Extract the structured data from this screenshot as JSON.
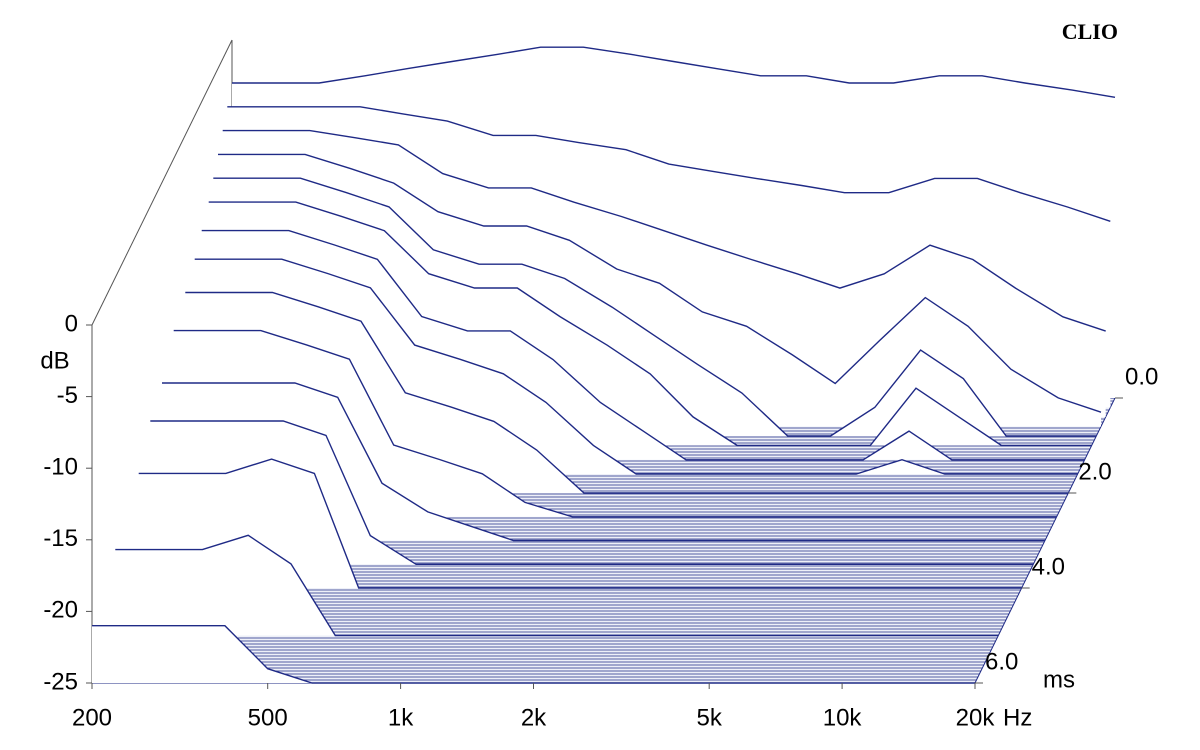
{
  "chart_data": {
    "type": "waterfall",
    "brand": "CLIO",
    "y_label": "dB",
    "x_label": "Hz",
    "t_label": "ms",
    "log_x": true,
    "color": "#1f2a86",
    "xlim": [
      200,
      20000
    ],
    "ylim": [
      -25,
      0
    ],
    "tlim": [
      0,
      6
    ],
    "xticks": [
      200,
      500,
      {
        "value": 1000,
        "label": "1k"
      },
      {
        "value": 2000,
        "label": "2k"
      },
      {
        "value": 5000,
        "label": "5k"
      },
      {
        "value": 10000,
        "label": "10k"
      },
      {
        "value": 20000,
        "label": "20k"
      }
    ],
    "yticks": [
      0,
      -5,
      -10,
      -15,
      -20,
      -25
    ],
    "tticks": [
      {
        "value": 0,
        "label": "0.0"
      },
      {
        "value": 2,
        "label": "2.0"
      },
      {
        "value": 4,
        "label": "4.0"
      },
      {
        "value": 6,
        "label": "6.0"
      }
    ],
    "x": [
      200,
      250,
      315,
      400,
      500,
      630,
      800,
      1000,
      1250,
      1600,
      2000,
      2500,
      3150,
      4000,
      5000,
      6300,
      8000,
      10000,
      12500,
      16000,
      20000
    ],
    "times": [
      0,
      0.2,
      0.4,
      0.6,
      0.8,
      1.0,
      1.3,
      1.6,
      2.0,
      2.5,
      3.0,
      3.5,
      4.0,
      5.0,
      6.0
    ],
    "slices": [
      [
        -3,
        -3,
        -3,
        -2.5,
        -2,
        -1.5,
        -1,
        -0.5,
        -0.5,
        -1,
        -1.5,
        -2,
        -2.5,
        -2.5,
        -3,
        -3,
        -2.5,
        -2.5,
        -3,
        -3.5,
        -4
      ],
      [
        -4,
        -4,
        -4,
        -4,
        -4.5,
        -5,
        -6,
        -6,
        -6.5,
        -7,
        -8,
        -8.5,
        -9,
        -9.5,
        -10,
        -10,
        -9,
        -9,
        -10,
        -11,
        -12
      ],
      [
        -5,
        -5,
        -5,
        -5.5,
        -6,
        -8,
        -9,
        -9,
        -10,
        -11,
        -12,
        -13,
        -14,
        -15,
        -16,
        -15,
        -13,
        -14,
        -16,
        -18,
        -19
      ],
      [
        -6,
        -6,
        -6,
        -7,
        -8,
        -10,
        -11,
        -11,
        -12,
        -14,
        -15,
        -17,
        -18,
        -20,
        -22,
        -19,
        -16,
        -18,
        -21,
        -23,
        -24
      ],
      [
        -7,
        -7,
        -7,
        -8,
        -9,
        -12,
        -13,
        -13,
        -14,
        -16,
        -18,
        -20,
        -22,
        -25,
        -25,
        -23,
        -19,
        -21,
        -25,
        -25,
        -25
      ],
      [
        -8,
        -8,
        -8,
        -9,
        -10,
        -13,
        -14,
        -14,
        -16,
        -18,
        -20,
        -23,
        -25,
        -25,
        -25,
        -25,
        -21,
        -23,
        -25,
        -25,
        -25
      ],
      [
        -9,
        -9,
        -9,
        -10,
        -11,
        -15,
        -16,
        -16,
        -18,
        -21,
        -23,
        -25,
        -25,
        -25,
        -25,
        -25,
        -23,
        -25,
        -25,
        -25,
        -25
      ],
      [
        -10,
        -10,
        -10,
        -11,
        -12,
        -16,
        -17,
        -18,
        -20,
        -23,
        -25,
        -25,
        -25,
        -25,
        -25,
        -25,
        -24,
        -25,
        -25,
        -25,
        -25
      ],
      [
        -11,
        -11,
        -11,
        -12,
        -13,
        -18,
        -19,
        -20,
        -22,
        -25,
        -25,
        -25,
        -25,
        -25,
        -25,
        -25,
        -25,
        -25,
        -25,
        -25,
        -25
      ],
      [
        -12,
        -12,
        -12,
        -13,
        -14,
        -20,
        -21,
        -22,
        -24,
        -25,
        -25,
        -25,
        -25,
        -25,
        -25,
        -25,
        -25,
        -25,
        -25,
        -25,
        -25
      ],
      [
        -14,
        -14,
        -14,
        -14,
        -15,
        -21,
        -23,
        -24,
        -25,
        -25,
        -25,
        -25,
        -25,
        -25,
        -25,
        -25,
        -25,
        -25,
        -25,
        -25,
        -25
      ],
      [
        -15,
        -15,
        -15,
        -15,
        -16,
        -23,
        -25,
        -25,
        -25,
        -25,
        -25,
        -25,
        -25,
        -25,
        -25,
        -25,
        -25,
        -25,
        -25,
        -25,
        -25
      ],
      [
        -17,
        -17,
        -17,
        -16,
        -17,
        -25,
        -25,
        -25,
        -25,
        -25,
        -25,
        -25,
        -25,
        -25,
        -25,
        -25,
        -25,
        -25,
        -25,
        -25,
        -25
      ],
      [
        -19,
        -19,
        -19,
        -18,
        -20,
        -25,
        -25,
        -25,
        -25,
        -25,
        -25,
        -25,
        -25,
        -25,
        -25,
        -25,
        -25,
        -25,
        -25,
        -25,
        -25
      ],
      [
        -21,
        -21,
        -21,
        -21,
        -24,
        -25,
        -25,
        -25,
        -25,
        -25,
        -25,
        -25,
        -25,
        -25,
        -25,
        -25,
        -25,
        -25,
        -25,
        -25,
        -25
      ]
    ]
  }
}
